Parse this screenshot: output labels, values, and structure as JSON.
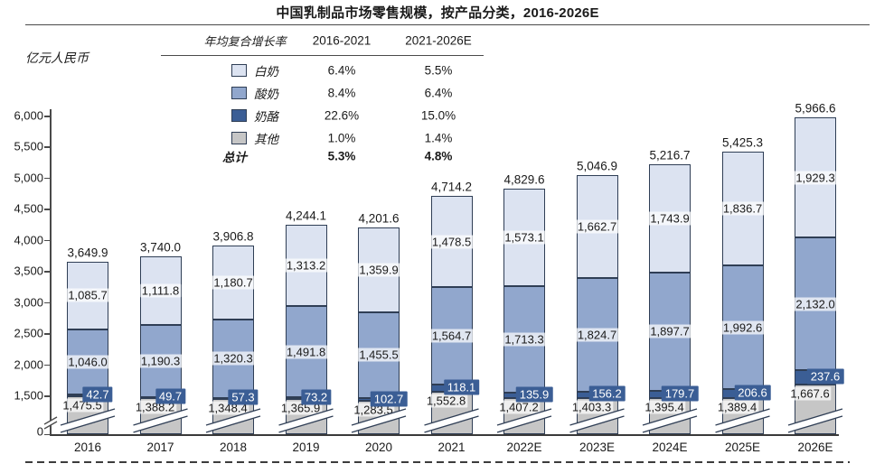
{
  "title": "中国乳制品市场零售规模，按产品分类，2016-2026E",
  "y_axis_unit": "亿元人民币",
  "cagr_table": {
    "header": {
      "cagr_label": "年均复合增长率",
      "col1": "2016-2021",
      "col2": "2021-2026E"
    },
    "rows": [
      {
        "label": "白奶",
        "c1": "6.4%",
        "c2": "5.5%"
      },
      {
        "label": "酸奶",
        "c1": "8.4%",
        "c2": "6.4%"
      },
      {
        "label": "奶酪",
        "c1": "22.6%",
        "c2": "15.0%"
      },
      {
        "label": "其他",
        "c1": "1.0%",
        "c2": "1.4%"
      }
    ],
    "total_row": {
      "label": "总计",
      "c1": "5.3%",
      "c2": "4.8%"
    }
  },
  "colors": {
    "white_milk": "#dce3f1",
    "yogurt": "#91a7cd",
    "cheese": "#3b5e95",
    "other": "#c6c6c6",
    "segment_border": "#2f3e55",
    "axis": "#3a3a3a",
    "label_text": "#1a1a1a"
  },
  "chart_data": {
    "type": "bar",
    "stacked": true,
    "title": "中国乳制品市场零售规模，按产品分类，2016-2026E",
    "ylabel": "亿元人民币",
    "xlabel": "",
    "categories": [
      "2016",
      "2017",
      "2018",
      "2019",
      "2020",
      "2021",
      "2022E",
      "2023E",
      "2024E",
      "2025E",
      "2026E"
    ],
    "stack_order_bottom_to_top": [
      "其他",
      "奶酪",
      "酸奶",
      "白奶"
    ],
    "series": [
      {
        "name": "白奶",
        "color": "#dce3f1",
        "values": [
          1085.7,
          1111.8,
          1180.7,
          1313.2,
          1359.9,
          1478.5,
          1573.1,
          1662.7,
          1743.9,
          1836.7,
          1929.3
        ]
      },
      {
        "name": "酸奶",
        "color": "#91a7cd",
        "values": [
          1046.0,
          1190.3,
          1320.3,
          1491.8,
          1455.5,
          1564.7,
          1713.3,
          1824.7,
          1897.7,
          1992.6,
          2132.0
        ]
      },
      {
        "name": "奶酪",
        "color": "#3b5e95",
        "values": [
          42.7,
          49.7,
          57.3,
          73.2,
          102.7,
          118.1,
          135.9,
          156.2,
          179.7,
          206.6,
          237.6
        ]
      },
      {
        "name": "其他",
        "color": "#c6c6c6",
        "values": [
          1475.5,
          1388.2,
          1348.4,
          1365.9,
          1283.5,
          1552.8,
          1407.2,
          1403.3,
          1395.4,
          1389.4,
          1667.6
        ]
      }
    ],
    "totals": [
      3649.9,
      3740.0,
      3906.8,
      4244.1,
      4201.6,
      4714.2,
      4829.6,
      5046.9,
      5216.7,
      5425.3,
      5966.6
    ],
    "ylim": [
      0,
      6000
    ],
    "y_ticks": [
      0,
      1500,
      2000,
      2500,
      3000,
      3500,
      4000,
      4500,
      5000,
      5500,
      6000
    ],
    "axis_break": {
      "between": [
        0,
        1500
      ]
    },
    "grid": false,
    "legend_position": "top-left-table"
  }
}
